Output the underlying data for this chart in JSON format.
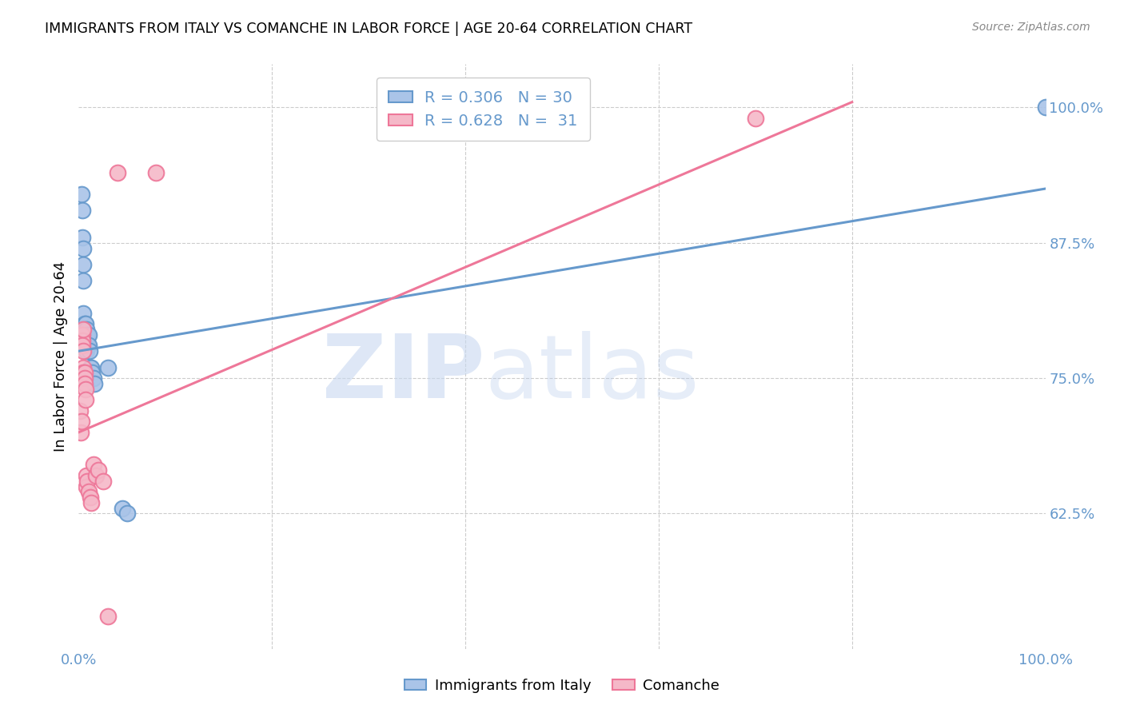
{
  "title": "IMMIGRANTS FROM ITALY VS COMANCHE IN LABOR FORCE | AGE 20-64 CORRELATION CHART",
  "source": "Source: ZipAtlas.com",
  "ylabel": "In Labor Force | Age 20-64",
  "ytick_labels": [
    "62.5%",
    "75.0%",
    "87.5%",
    "100.0%"
  ],
  "ytick_values": [
    0.625,
    0.75,
    0.875,
    1.0
  ],
  "xlim": [
    0.0,
    1.0
  ],
  "ylim": [
    0.5,
    1.04
  ],
  "blue_color": "#6699cc",
  "pink_color": "#ee7799",
  "blue_fill": "#aac4e8",
  "pink_fill": "#f5b8c8",
  "scatter_blue": [
    [
      0.003,
      0.92
    ],
    [
      0.004,
      0.905
    ],
    [
      0.004,
      0.88
    ],
    [
      0.005,
      0.87
    ],
    [
      0.005,
      0.855
    ],
    [
      0.005,
      0.84
    ],
    [
      0.005,
      0.81
    ],
    [
      0.006,
      0.8
    ],
    [
      0.006,
      0.795
    ],
    [
      0.007,
      0.8
    ],
    [
      0.007,
      0.79
    ],
    [
      0.007,
      0.785
    ],
    [
      0.007,
      0.78
    ],
    [
      0.008,
      0.795
    ],
    [
      0.008,
      0.785
    ],
    [
      0.008,
      0.775
    ],
    [
      0.009,
      0.79
    ],
    [
      0.009,
      0.78
    ],
    [
      0.01,
      0.79
    ],
    [
      0.01,
      0.78
    ],
    [
      0.011,
      0.775
    ],
    [
      0.012,
      0.76
    ],
    [
      0.013,
      0.76
    ],
    [
      0.014,
      0.755
    ],
    [
      0.015,
      0.75
    ],
    [
      0.016,
      0.745
    ],
    [
      0.03,
      0.76
    ],
    [
      0.045,
      0.63
    ],
    [
      0.05,
      0.625
    ],
    [
      1.0,
      1.0
    ]
  ],
  "scatter_pink": [
    [
      0.001,
      0.72
    ],
    [
      0.002,
      0.7
    ],
    [
      0.003,
      0.71
    ],
    [
      0.003,
      0.79
    ],
    [
      0.004,
      0.79
    ],
    [
      0.004,
      0.785
    ],
    [
      0.004,
      0.78
    ],
    [
      0.005,
      0.795
    ],
    [
      0.005,
      0.775
    ],
    [
      0.005,
      0.76
    ],
    [
      0.005,
      0.755
    ],
    [
      0.006,
      0.755
    ],
    [
      0.006,
      0.75
    ],
    [
      0.006,
      0.745
    ],
    [
      0.007,
      0.74
    ],
    [
      0.007,
      0.73
    ],
    [
      0.008,
      0.66
    ],
    [
      0.008,
      0.65
    ],
    [
      0.009,
      0.655
    ],
    [
      0.01,
      0.645
    ],
    [
      0.012,
      0.64
    ],
    [
      0.013,
      0.635
    ],
    [
      0.015,
      0.67
    ],
    [
      0.018,
      0.66
    ],
    [
      0.02,
      0.665
    ],
    [
      0.025,
      0.655
    ],
    [
      0.03,
      0.53
    ],
    [
      0.04,
      0.94
    ],
    [
      0.08,
      0.94
    ],
    [
      0.7,
      0.99
    ],
    [
      0.4,
      1.005
    ]
  ],
  "blue_line": [
    [
      0.0,
      0.775
    ],
    [
      1.0,
      0.925
    ]
  ],
  "pink_line": [
    [
      0.0,
      0.7
    ],
    [
      0.8,
      1.005
    ]
  ],
  "legend_labels": [
    "R = 0.306   N = 30",
    "R = 0.628   N =  31"
  ],
  "bottom_legend": [
    "Immigrants from Italy",
    "Comanche"
  ]
}
